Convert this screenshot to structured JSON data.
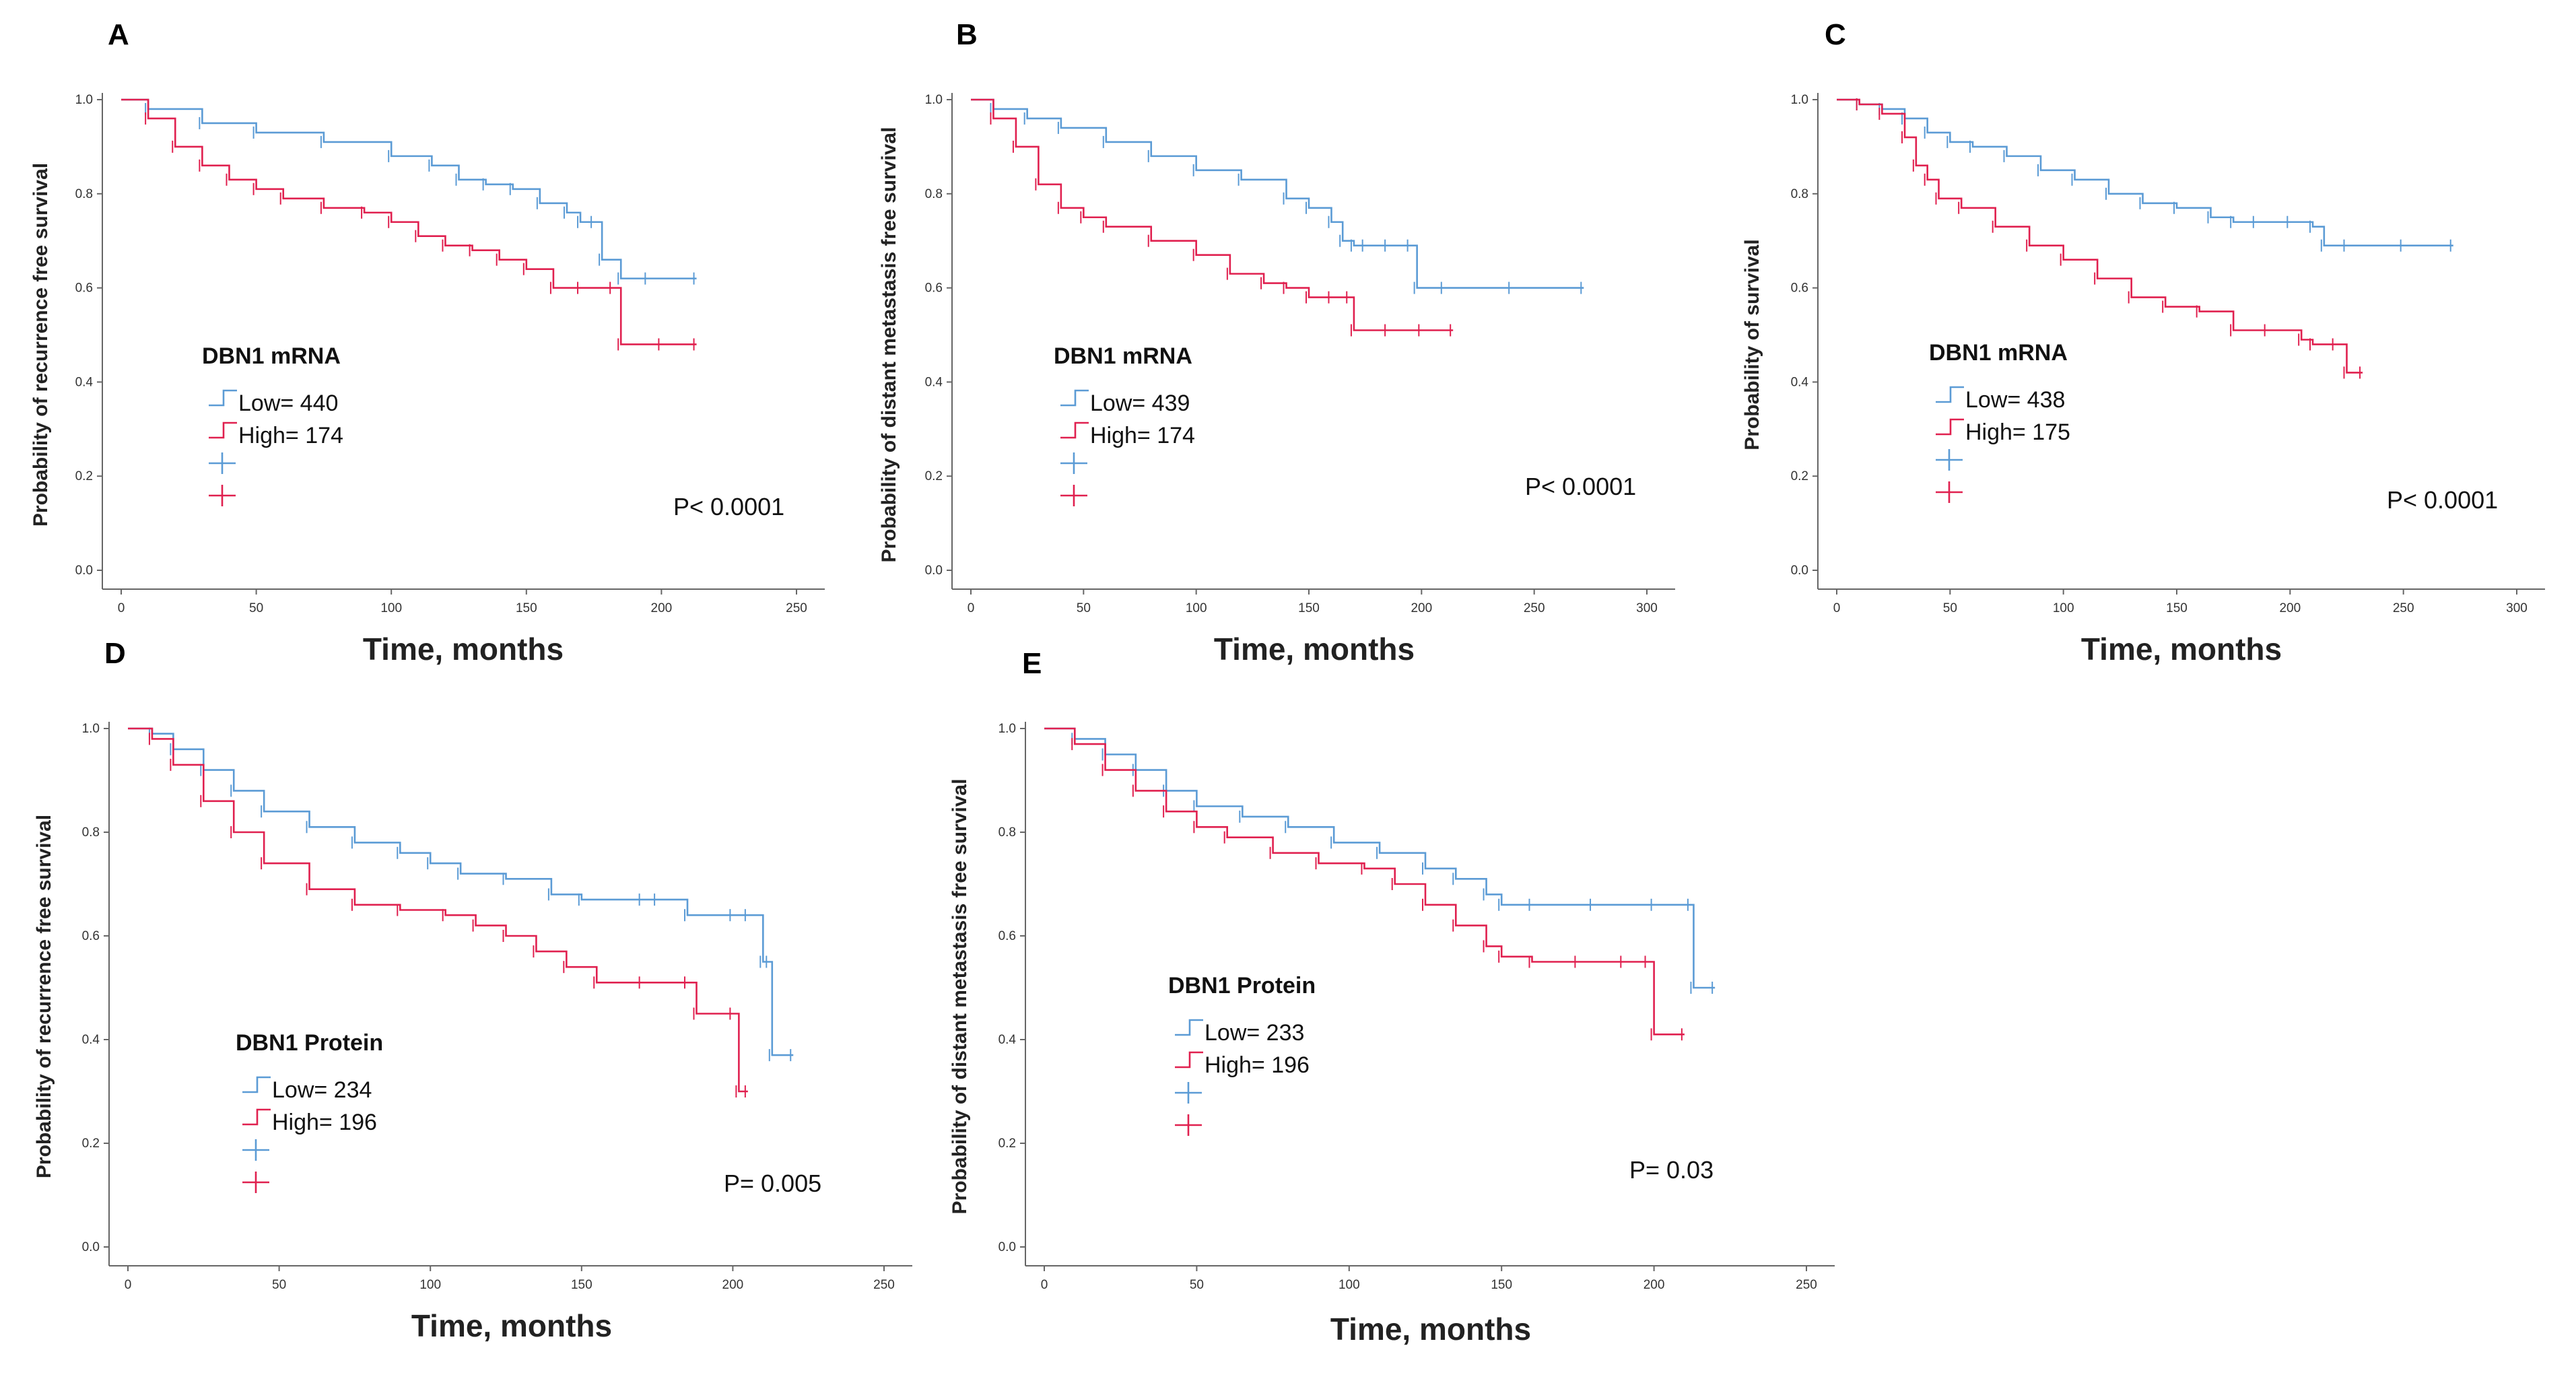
{
  "figure": {
    "colors": {
      "low": "#5b9bd5",
      "high": "#e0204f"
    }
  },
  "chart_data": [
    {
      "id": "A",
      "type": "line",
      "panel_label": "A",
      "xlabel": "Time, months",
      "ylabel": "Probability of recurrence free survival",
      "xlim": [
        0,
        250
      ],
      "ylim": [
        0,
        1
      ],
      "xticks": [
        "0",
        "50",
        "100",
        "150",
        "200",
        "250"
      ],
      "yticks": [
        "0.0",
        "0.2",
        "0.4",
        "0.6",
        "0.8",
        "1.0"
      ],
      "legend": {
        "title": "DBN1 mRNA",
        "placement": "center-left"
      },
      "p_value": "P< 0.0001",
      "series": [
        {
          "name": "Low= 440",
          "color": "#5b9bd5",
          "x": [
            0,
            10,
            30,
            50,
            75,
            100,
            115,
            125,
            135,
            145,
            155,
            165,
            170,
            175,
            178,
            185,
            195,
            213
          ],
          "y": [
            1.0,
            0.98,
            0.95,
            0.93,
            0.91,
            0.88,
            0.86,
            0.83,
            0.82,
            0.81,
            0.78,
            0.76,
            0.74,
            0.74,
            0.66,
            0.62,
            0.62,
            0.62
          ]
        },
        {
          "name": "High= 174",
          "color": "#e0204f",
          "x": [
            0,
            10,
            20,
            30,
            40,
            50,
            60,
            75,
            90,
            100,
            110,
            120,
            130,
            140,
            150,
            160,
            170,
            182,
            185,
            200,
            213
          ],
          "y": [
            1.0,
            0.96,
            0.9,
            0.86,
            0.83,
            0.81,
            0.79,
            0.77,
            0.76,
            0.74,
            0.71,
            0.69,
            0.68,
            0.66,
            0.64,
            0.6,
            0.6,
            0.6,
            0.48,
            0.48,
            0.48
          ]
        }
      ]
    },
    {
      "id": "B",
      "type": "line",
      "panel_label": "B",
      "xlabel": "Time, months",
      "ylabel": "Probability of distant metastasis free survival",
      "xlim": [
        0,
        300
      ],
      "ylim": [
        0,
        1
      ],
      "xticks": [
        "0",
        "50",
        "100",
        "150",
        "200",
        "250",
        "300"
      ],
      "yticks": [
        "0.0",
        "0.2",
        "0.4",
        "0.6",
        "0.8",
        "1.0"
      ],
      "legend": {
        "title": "DBN1 mRNA",
        "placement": "center-left"
      },
      "p_value": "P< 0.0001",
      "series": [
        {
          "name": "Low= 439",
          "color": "#5b9bd5",
          "x": [
            0,
            10,
            25,
            40,
            60,
            80,
            100,
            120,
            140,
            150,
            160,
            165,
            170,
            175,
            185,
            195,
            198,
            210,
            240,
            272
          ],
          "y": [
            1.0,
            0.98,
            0.96,
            0.94,
            0.91,
            0.88,
            0.85,
            0.83,
            0.79,
            0.77,
            0.74,
            0.7,
            0.69,
            0.69,
            0.69,
            0.69,
            0.6,
            0.6,
            0.6,
            0.6
          ]
        },
        {
          "name": "High= 174",
          "color": "#e0204f",
          "x": [
            0,
            10,
            20,
            30,
            40,
            50,
            60,
            80,
            100,
            115,
            130,
            140,
            150,
            160,
            168,
            170,
            185,
            200,
            214
          ],
          "y": [
            1.0,
            0.96,
            0.9,
            0.82,
            0.77,
            0.75,
            0.73,
            0.7,
            0.67,
            0.63,
            0.61,
            0.6,
            0.58,
            0.58,
            0.58,
            0.51,
            0.51,
            0.51,
            0.51
          ]
        }
      ]
    },
    {
      "id": "C",
      "type": "line",
      "panel_label": "C",
      "xlabel": "Time, months",
      "ylabel": "Probability of survival",
      "xlim": [
        0,
        300
      ],
      "ylim": [
        0,
        1
      ],
      "xticks": [
        "0",
        "50",
        "100",
        "150",
        "200",
        "250",
        "300"
      ],
      "yticks": [
        "0.0",
        "0.2",
        "0.4",
        "0.6",
        "0.8",
        "1.0"
      ],
      "legend": {
        "title": "DBN1 mRNA",
        "placement": "center-left"
      },
      "p_value": "P< 0.0001",
      "series": [
        {
          "name": "Low= 438",
          "color": "#5b9bd5",
          "x": [
            0,
            10,
            20,
            30,
            40,
            50,
            60,
            75,
            90,
            105,
            120,
            135,
            150,
            165,
            175,
            185,
            200,
            210,
            215,
            225,
            250,
            272
          ],
          "y": [
            1.0,
            0.99,
            0.98,
            0.96,
            0.93,
            0.91,
            0.9,
            0.88,
            0.85,
            0.83,
            0.8,
            0.78,
            0.77,
            0.75,
            0.74,
            0.74,
            0.74,
            0.73,
            0.69,
            0.69,
            0.69,
            0.69
          ]
        },
        {
          "name": "High= 175",
          "color": "#e0204f",
          "x": [
            0,
            10,
            20,
            30,
            35,
            40,
            45,
            55,
            70,
            85,
            100,
            115,
            130,
            145,
            160,
            175,
            190,
            205,
            210,
            220,
            225,
            232
          ],
          "y": [
            1.0,
            0.99,
            0.97,
            0.92,
            0.86,
            0.83,
            0.79,
            0.77,
            0.73,
            0.69,
            0.66,
            0.62,
            0.58,
            0.56,
            0.55,
            0.51,
            0.51,
            0.49,
            0.48,
            0.48,
            0.42,
            0.42
          ]
        }
      ]
    },
    {
      "id": "D",
      "type": "line",
      "panel_label": "D",
      "xlabel": "Time, months",
      "ylabel": "Probability of recurrence free survival",
      "xlim": [
        0,
        250
      ],
      "ylim": [
        0,
        1
      ],
      "xticks": [
        "0",
        "50",
        "100",
        "150",
        "200",
        "250"
      ],
      "yticks": [
        "0.0",
        "0.2",
        "0.4",
        "0.6",
        "0.8",
        "1.0"
      ],
      "legend": {
        "title": "DBN1 Protein",
        "placement": "bottom-left"
      },
      "p_value": "P= 0.005",
      "series": [
        {
          "name": "Low= 234",
          "color": "#5b9bd5",
          "x": [
            0,
            8,
            15,
            25,
            35,
            45,
            60,
            75,
            90,
            100,
            110,
            125,
            140,
            150,
            170,
            175,
            185,
            200,
            205,
            210,
            212,
            213,
            220
          ],
          "y": [
            1.0,
            0.99,
            0.96,
            0.92,
            0.88,
            0.84,
            0.81,
            0.78,
            0.76,
            0.74,
            0.72,
            0.71,
            0.68,
            0.67,
            0.67,
            0.67,
            0.64,
            0.64,
            0.64,
            0.55,
            0.55,
            0.37,
            0.37
          ]
        },
        {
          "name": "High= 196",
          "color": "#e0204f",
          "x": [
            0,
            8,
            15,
            25,
            35,
            45,
            60,
            75,
            90,
            105,
            115,
            125,
            135,
            145,
            155,
            170,
            185,
            188,
            200,
            202,
            205
          ],
          "y": [
            1.0,
            0.98,
            0.93,
            0.86,
            0.8,
            0.74,
            0.69,
            0.66,
            0.65,
            0.64,
            0.62,
            0.6,
            0.57,
            0.54,
            0.51,
            0.51,
            0.51,
            0.45,
            0.45,
            0.3,
            0.3
          ]
        }
      ]
    },
    {
      "id": "E",
      "type": "line",
      "panel_label": "E",
      "xlabel": "Time, months",
      "ylabel": "Probability of distant metastasis free survival",
      "xlim": [
        0,
        250
      ],
      "ylim": [
        0,
        1
      ],
      "xticks": [
        "0",
        "50",
        "100",
        "150",
        "200",
        "250"
      ],
      "yticks": [
        "0.0",
        "0.2",
        "0.4",
        "0.6",
        "0.8",
        "1.0"
      ],
      "legend": {
        "title": "DBN1 Protein",
        "placement": "center-left"
      },
      "p_value": "P= 0.03",
      "series": [
        {
          "name": "Low= 233",
          "color": "#5b9bd5",
          "x": [
            0,
            10,
            20,
            30,
            40,
            50,
            65,
            80,
            95,
            110,
            125,
            135,
            145,
            150,
            160,
            180,
            200,
            212,
            213,
            220
          ],
          "y": [
            1.0,
            0.98,
            0.95,
            0.92,
            0.88,
            0.85,
            0.83,
            0.81,
            0.78,
            0.76,
            0.73,
            0.71,
            0.68,
            0.66,
            0.66,
            0.66,
            0.66,
            0.66,
            0.5,
            0.5
          ]
        },
        {
          "name": "High= 196",
          "color": "#e0204f",
          "x": [
            0,
            10,
            20,
            30,
            40,
            50,
            60,
            75,
            90,
            105,
            115,
            125,
            135,
            145,
            150,
            160,
            175,
            190,
            198,
            200,
            210
          ],
          "y": [
            1.0,
            0.97,
            0.92,
            0.88,
            0.84,
            0.81,
            0.79,
            0.76,
            0.74,
            0.73,
            0.7,
            0.66,
            0.62,
            0.58,
            0.56,
            0.55,
            0.55,
            0.55,
            0.55,
            0.41,
            0.41
          ]
        }
      ]
    }
  ]
}
